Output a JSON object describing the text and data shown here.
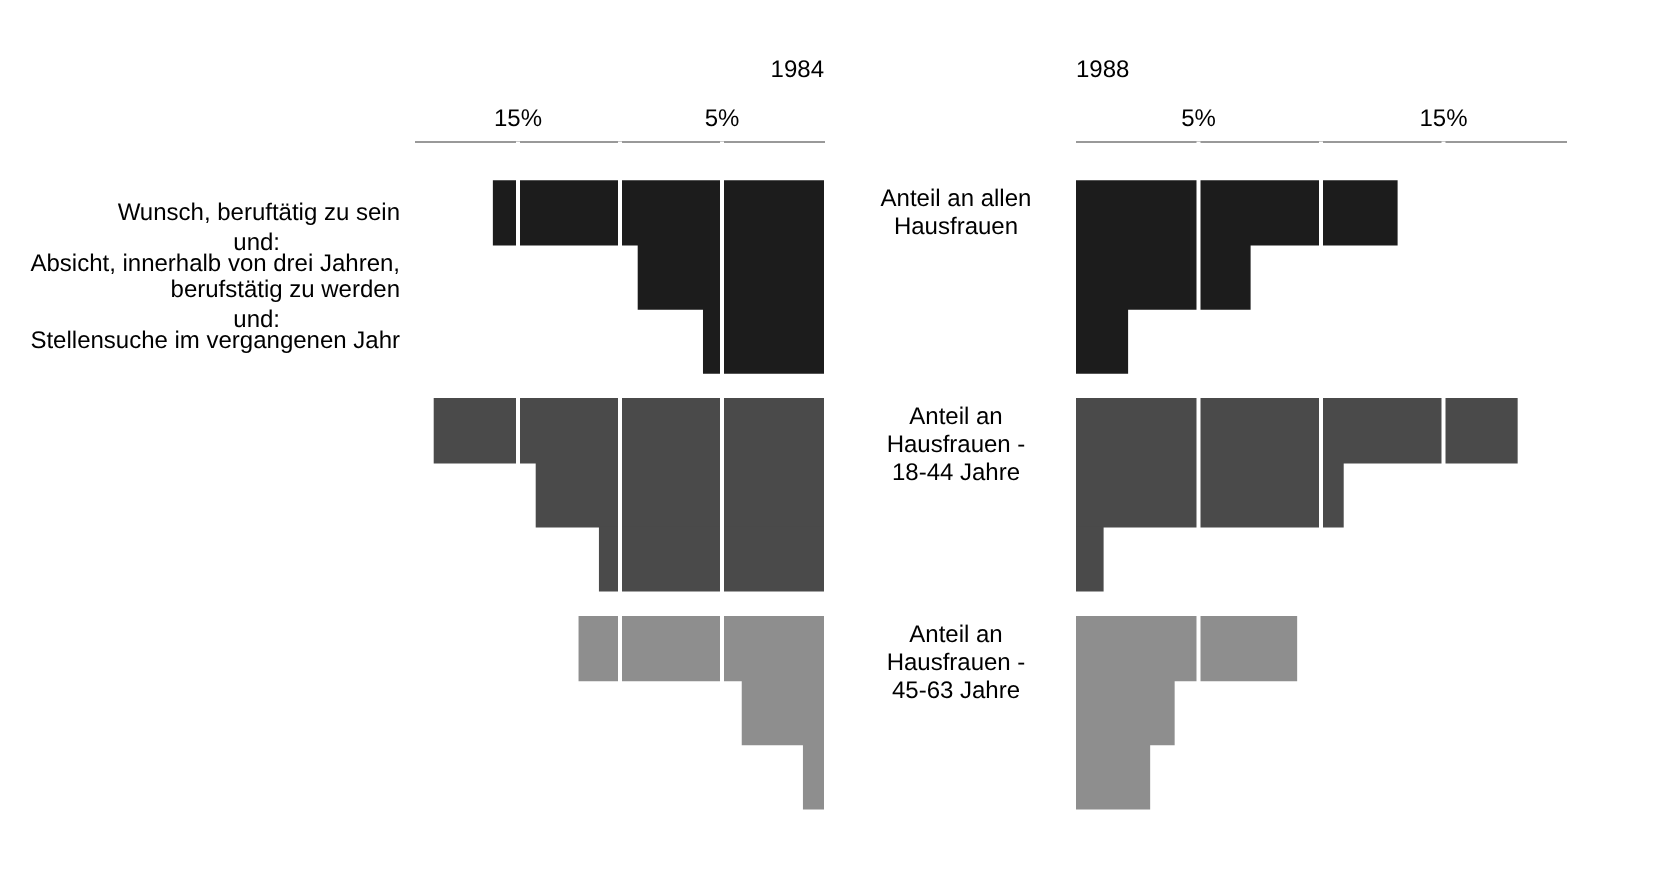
{
  "chart_data": [
    {
      "type": "bar",
      "orientation": "horizontal",
      "title": "1984",
      "categories": [
        "Wunsch, beruftätig zu sein",
        "Absicht, innerhalb von drei Jahren, berufstätig zu werden",
        "Stellensuche im vergangenen Jahr",
        null,
        null,
        null,
        null,
        null,
        null
      ],
      "values": [
        16.2,
        9.1,
        5.9,
        19.1,
        14.1,
        11.0,
        12.0,
        4.0,
        1.0
      ],
      "colors": [
        "#1c1c1c",
        "#1c1c1c",
        "#1c1c1c",
        "#4a4a4a",
        "#4a4a4a",
        "#4a4a4a",
        "#8e8e8e",
        "#8e8e8e",
        "#8e8e8e"
      ],
      "xlim": [
        20,
        0
      ],
      "xticks": [
        {
          "value": 15,
          "label": "15%"
        },
        {
          "value": 10,
          "label": null
        },
        {
          "value": 5,
          "label": "5%"
        }
      ],
      "grid": "x",
      "annotations": [
        "und:",
        "und:",
        "Anteil an allen Hausfrauen",
        "Anteil an Hausfrauen - 18-44 Jahre",
        "Anteil an Hausfrauen - 45-63 Jahre"
      ]
    },
    {
      "type": "bar",
      "orientation": "horizontal",
      "title": "1988",
      "categories": [
        null,
        null,
        null,
        null,
        null,
        null,
        null,
        null,
        null
      ],
      "values": [
        13.1,
        7.1,
        2.1,
        18.0,
        10.9,
        1.1,
        9.0,
        4.0,
        3.0
      ],
      "colors": [
        "#1c1c1c",
        "#1c1c1c",
        "#1c1c1c",
        "#4a4a4a",
        "#4a4a4a",
        "#4a4a4a",
        "#8e8e8e",
        "#8e8e8e",
        "#8e8e8e"
      ],
      "xlim": [
        0,
        20
      ],
      "xticks": [
        {
          "value": 5,
          "label": "5%"
        },
        {
          "value": 10,
          "label": null
        },
        {
          "value": 15,
          "label": "15%"
        }
      ],
      "grid": "x"
    }
  ]
}
